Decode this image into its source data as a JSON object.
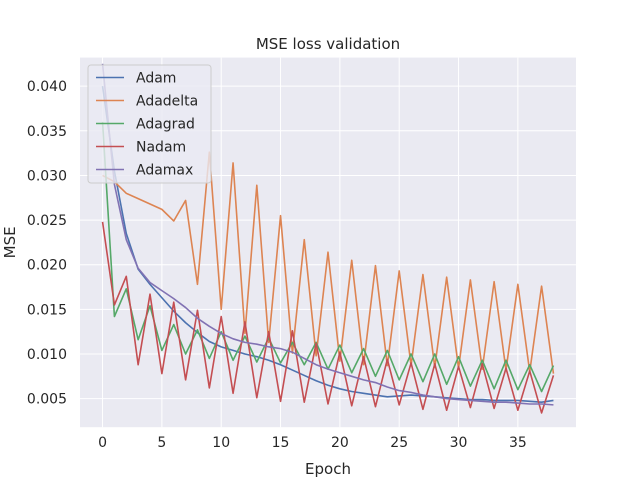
{
  "chart_data": {
    "type": "line",
    "title": "MSE loss validation",
    "xlabel": "Epoch",
    "ylabel": "MSE",
    "xlim": [
      -1.9,
      39.9
    ],
    "ylim": [
      0.0018,
      0.0432
    ],
    "xticks": [
      0,
      5,
      10,
      15,
      20,
      25,
      30,
      35
    ],
    "yticks": [
      0.005,
      0.01,
      0.015,
      0.02,
      0.025,
      0.03,
      0.035,
      0.04
    ],
    "ytick_labels": [
      "0.005",
      "0.010",
      "0.015",
      "0.020",
      "0.025",
      "0.030",
      "0.035",
      "0.040"
    ],
    "grid": true,
    "legend_position": "top-left",
    "x": [
      0,
      1,
      2,
      3,
      4,
      5,
      6,
      7,
      8,
      9,
      10,
      11,
      12,
      13,
      14,
      15,
      16,
      17,
      18,
      19,
      20,
      21,
      22,
      23,
      24,
      25,
      26,
      27,
      28,
      29,
      30,
      31,
      32,
      33,
      34,
      35,
      36,
      37,
      38
    ],
    "series": [
      {
        "name": "Adam",
        "color": "#4c72b0",
        "values": [
          0.04,
          0.0305,
          0.0235,
          0.0195,
          0.0178,
          0.0163,
          0.0148,
          0.0135,
          0.0124,
          0.0114,
          0.0108,
          0.0104,
          0.01,
          0.0097,
          0.0093,
          0.0088,
          0.0082,
          0.0076,
          0.007,
          0.0065,
          0.0061,
          0.0058,
          0.0056,
          0.0054,
          0.0052,
          0.0053,
          0.0054,
          0.0053,
          0.0052,
          0.0051,
          0.005,
          0.0049,
          0.0049,
          0.0048,
          0.0048,
          0.0048,
          0.0047,
          0.0046,
          0.0048
        ]
      },
      {
        "name": "Adadelta",
        "color": "#dd8452",
        "values": [
          0.03,
          0.0293,
          0.028,
          0.0274,
          0.0268,
          0.0262,
          0.0249,
          0.0272,
          0.0178,
          0.0326,
          0.015,
          0.0314,
          0.0123,
          0.0289,
          0.0113,
          0.0255,
          0.0101,
          0.0228,
          0.0098,
          0.0214,
          0.0092,
          0.0205,
          0.0088,
          0.0199,
          0.0087,
          0.0193,
          0.0087,
          0.0189,
          0.0085,
          0.0186,
          0.0084,
          0.0183,
          0.0083,
          0.0181,
          0.0082,
          0.0178,
          0.008,
          0.0176,
          0.0078
        ]
      },
      {
        "name": "Adagrad",
        "color": "#55a868",
        "values": [
          0.036,
          0.0142,
          0.0173,
          0.0116,
          0.0154,
          0.0104,
          0.0133,
          0.01,
          0.0127,
          0.0095,
          0.0125,
          0.0093,
          0.012,
          0.0091,
          0.0118,
          0.009,
          0.0113,
          0.0088,
          0.0113,
          0.0083,
          0.011,
          0.0079,
          0.0106,
          0.0075,
          0.0104,
          0.0071,
          0.01,
          0.0069,
          0.01,
          0.0066,
          0.0097,
          0.0064,
          0.0093,
          0.0061,
          0.0093,
          0.006,
          0.0088,
          0.0058,
          0.0087
        ]
      },
      {
        "name": "Nadam",
        "color": "#c44e52",
        "values": [
          0.0248,
          0.0155,
          0.0187,
          0.0088,
          0.0167,
          0.0078,
          0.0158,
          0.0071,
          0.0149,
          0.0062,
          0.0142,
          0.0056,
          0.0136,
          0.0051,
          0.0125,
          0.0047,
          0.0126,
          0.0046,
          0.0112,
          0.0044,
          0.0102,
          0.0042,
          0.0097,
          0.0041,
          0.0094,
          0.0043,
          0.009,
          0.0038,
          0.0089,
          0.0037,
          0.0086,
          0.004,
          0.0089,
          0.0039,
          0.0084,
          0.0037,
          0.0081,
          0.0034,
          0.0076
        ]
      },
      {
        "name": "Adamax",
        "color": "#8172b3",
        "values": [
          0.0425,
          0.029,
          0.0228,
          0.0196,
          0.018,
          0.0171,
          0.0162,
          0.0152,
          0.014,
          0.0131,
          0.0123,
          0.0117,
          0.0113,
          0.0111,
          0.0108,
          0.0106,
          0.0102,
          0.0095,
          0.0088,
          0.0083,
          0.0079,
          0.0075,
          0.0071,
          0.0068,
          0.0063,
          0.0059,
          0.0057,
          0.0054,
          0.0052,
          0.005,
          0.0049,
          0.0048,
          0.0047,
          0.0046,
          0.0046,
          0.0045,
          0.0044,
          0.0044,
          0.0043
        ]
      }
    ]
  }
}
